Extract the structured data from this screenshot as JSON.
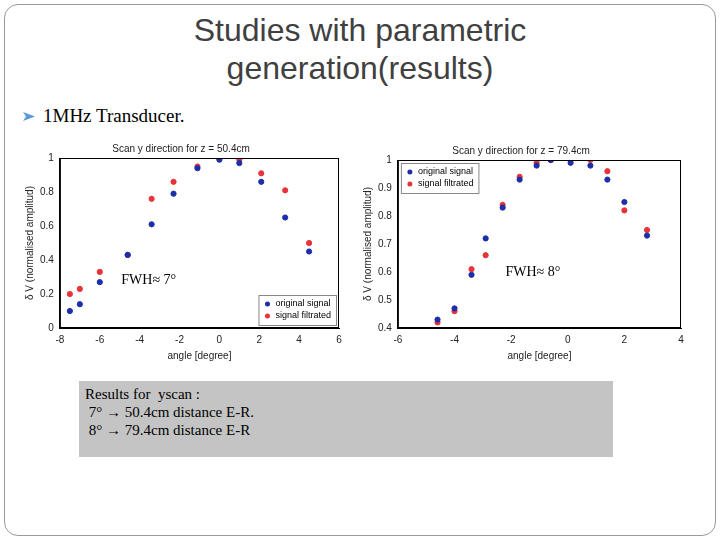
{
  "slide": {
    "title": [
      "Studies with parametric",
      "generation(results)"
    ],
    "bullet": "1MHz Transducer.",
    "results": [
      "Results for  yscan :",
      " 7° → 50.4cm distance E-R.",
      " 8° → 79.4cm distance E-R"
    ]
  },
  "chart_data": [
    {
      "type": "scatter",
      "title": "Scan y direction for z = 50.4cm",
      "x_label": "angle [degree]",
      "y_label": "δ V (normalised amplitud)",
      "x": [
        -7.5,
        -7,
        -6,
        -4.6,
        -3.4,
        -2.3,
        -1.1,
        0,
        1,
        2.1,
        3.3,
        4.5
      ],
      "series": [
        {
          "name": "original signal",
          "color": "#1c2fa8",
          "marker": "circle",
          "values": [
            0.1,
            0.14,
            0.27,
            0.43,
            0.61,
            0.79,
            0.94,
            0.99,
            0.97,
            0.86,
            0.65,
            0.45
          ]
        },
        {
          "name": "signal filtrated",
          "color": "#e8333a",
          "marker": "circle",
          "values": [
            0.2,
            0.23,
            0.33,
            0.43,
            0.76,
            0.86,
            0.95,
            1.0,
            0.99,
            0.91,
            0.81,
            0.5
          ]
        }
      ],
      "xlim": [
        -8,
        6
      ],
      "xticks": [
        -8,
        -6,
        -4,
        -2,
        0,
        2,
        4,
        6
      ],
      "ylim": [
        0,
        1
      ],
      "yticks": [
        0,
        0.2,
        0.4,
        0.6,
        0.8,
        1
      ],
      "grid": false,
      "legend": "lower right",
      "annotation": "FWH≈ 7°"
    },
    {
      "type": "scatter",
      "title": "Scan y direction for z = 79.4cm",
      "x_label": "angle [degree]",
      "y_label": "δ V (normalised amplitud)",
      "x": [
        -4.6,
        -4,
        -3.4,
        -2.9,
        -2.3,
        -1.7,
        -1.1,
        -0.6,
        0.1,
        0.8,
        1.4,
        2,
        2.8
      ],
      "series": [
        {
          "name": "original signal",
          "color": "#1c2fa8",
          "marker": "circle",
          "values": [
            0.43,
            0.47,
            0.59,
            0.72,
            0.83,
            0.93,
            0.98,
            1.0,
            0.99,
            0.98,
            0.93,
            0.85,
            0.73
          ]
        },
        {
          "name": "signal filtrated",
          "color": "#e8333a",
          "marker": "circle",
          "values": [
            0.42,
            0.46,
            0.61,
            0.66,
            0.84,
            0.94,
            0.99,
            1.0,
            1.0,
            1.0,
            0.96,
            0.82,
            0.75
          ]
        }
      ],
      "xlim": [
        -6,
        4
      ],
      "xticks": [
        -6,
        -4,
        -2,
        0,
        2,
        4
      ],
      "ylim": [
        0.4,
        1
      ],
      "yticks": [
        0.4,
        0.5,
        0.6,
        0.7,
        0.8,
        0.9,
        1
      ],
      "grid": false,
      "legend": "upper left",
      "annotation": "FWH≈ 8°"
    }
  ]
}
